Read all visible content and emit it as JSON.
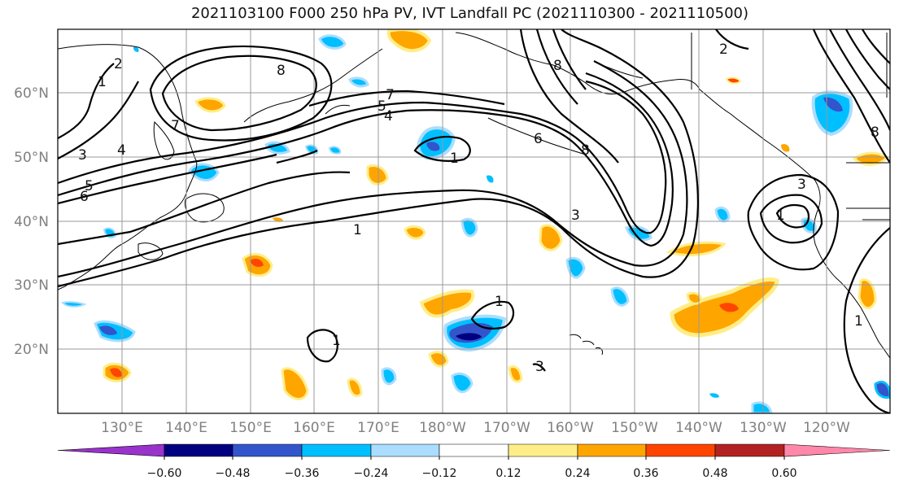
{
  "title": "2021103100 F000 250 hPa PV, IVT Landfall PC (2021110300 - 2021110500)",
  "map": {
    "lat_labels": [
      "60°N",
      "50°N",
      "40°N",
      "30°N",
      "20°N"
    ],
    "lon_labels": [
      "130°E",
      "140°E",
      "150°E",
      "160°E",
      "170°E",
      "180°W",
      "170°W",
      "160°W",
      "150°W",
      "140°W",
      "130°W",
      "120°W"
    ],
    "contour_labels": [
      "1",
      "2",
      "3",
      "4",
      "5",
      "6",
      "7",
      "8",
      "1",
      "1",
      "1",
      "1",
      "3",
      "8",
      "3",
      "1",
      "8",
      "2",
      "3",
      "1",
      "4",
      "5",
      "6",
      "7",
      "8"
    ],
    "grid": true
  },
  "colorbar": {
    "colors": [
      "#9933cc",
      "#000080",
      "#3355cc",
      "#00bfff",
      "#aaddff",
      "#ffffff",
      "#ffee88",
      "#ffa500",
      "#ff4500",
      "#b22222",
      "#ff88aa"
    ],
    "tick_labels": [
      "−0.60",
      "−0.48",
      "−0.36",
      "−0.24",
      "−0.12",
      "0.12",
      "0.24",
      "0.36",
      "0.48",
      "0.60"
    ]
  }
}
